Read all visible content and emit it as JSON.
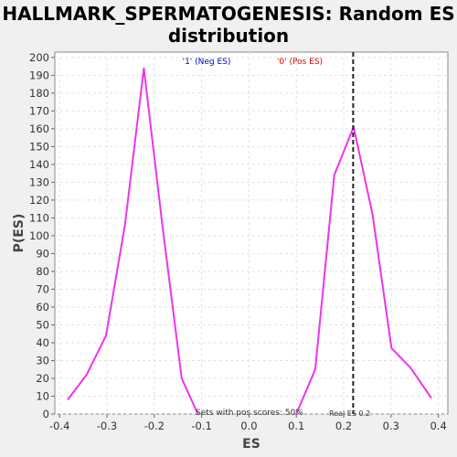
{
  "chart_data": {
    "type": "line",
    "title_line1": "HALLMARK_SPERMATOGENESIS: Random ES",
    "title_line2": "distribution",
    "xlabel": "ES",
    "ylabel": "P(ES)",
    "xlim": [
      -0.41,
      0.42
    ],
    "ylim": [
      0,
      203
    ],
    "x_ticks": [
      -0.4,
      -0.3,
      -0.2,
      -0.1,
      0.0,
      0.1,
      0.2,
      0.3,
      0.4
    ],
    "x_tick_labels": [
      "-0.4",
      "-0.3",
      "-0.2",
      "-0.1",
      "0.0",
      "0.1",
      "0.2",
      "0.3",
      "0.4"
    ],
    "y_ticks": [
      0,
      10,
      20,
      30,
      40,
      50,
      60,
      70,
      80,
      90,
      100,
      110,
      120,
      130,
      140,
      150,
      160,
      170,
      180,
      190,
      200
    ],
    "grid": true,
    "series": [
      {
        "color": "#ee33ee",
        "x": [
          -0.383,
          -0.343,
          -0.302,
          -0.262,
          -0.222,
          -0.182,
          -0.142,
          -0.108
        ],
        "y": [
          8,
          22,
          44,
          106,
          194,
          104,
          20,
          0
        ]
      },
      {
        "color": "#ee33ee",
        "x": [
          0.1,
          0.14,
          0.18,
          0.221,
          0.261,
          0.301,
          0.341,
          0.385
        ],
        "y": [
          0,
          25,
          134,
          161,
          112,
          37,
          26,
          9
        ]
      }
    ],
    "real_es": 0.22,
    "legend_neg": {
      "label": "'1' (Neg ES)",
      "color": "#0000cc"
    },
    "legend_pos": {
      "label": "'0' (Pos ES)",
      "color": "#dd0000"
    },
    "annotation_pos_scores": "Sets with pos scores: 50%",
    "annotation_real_es": "Real ES 0.2"
  }
}
